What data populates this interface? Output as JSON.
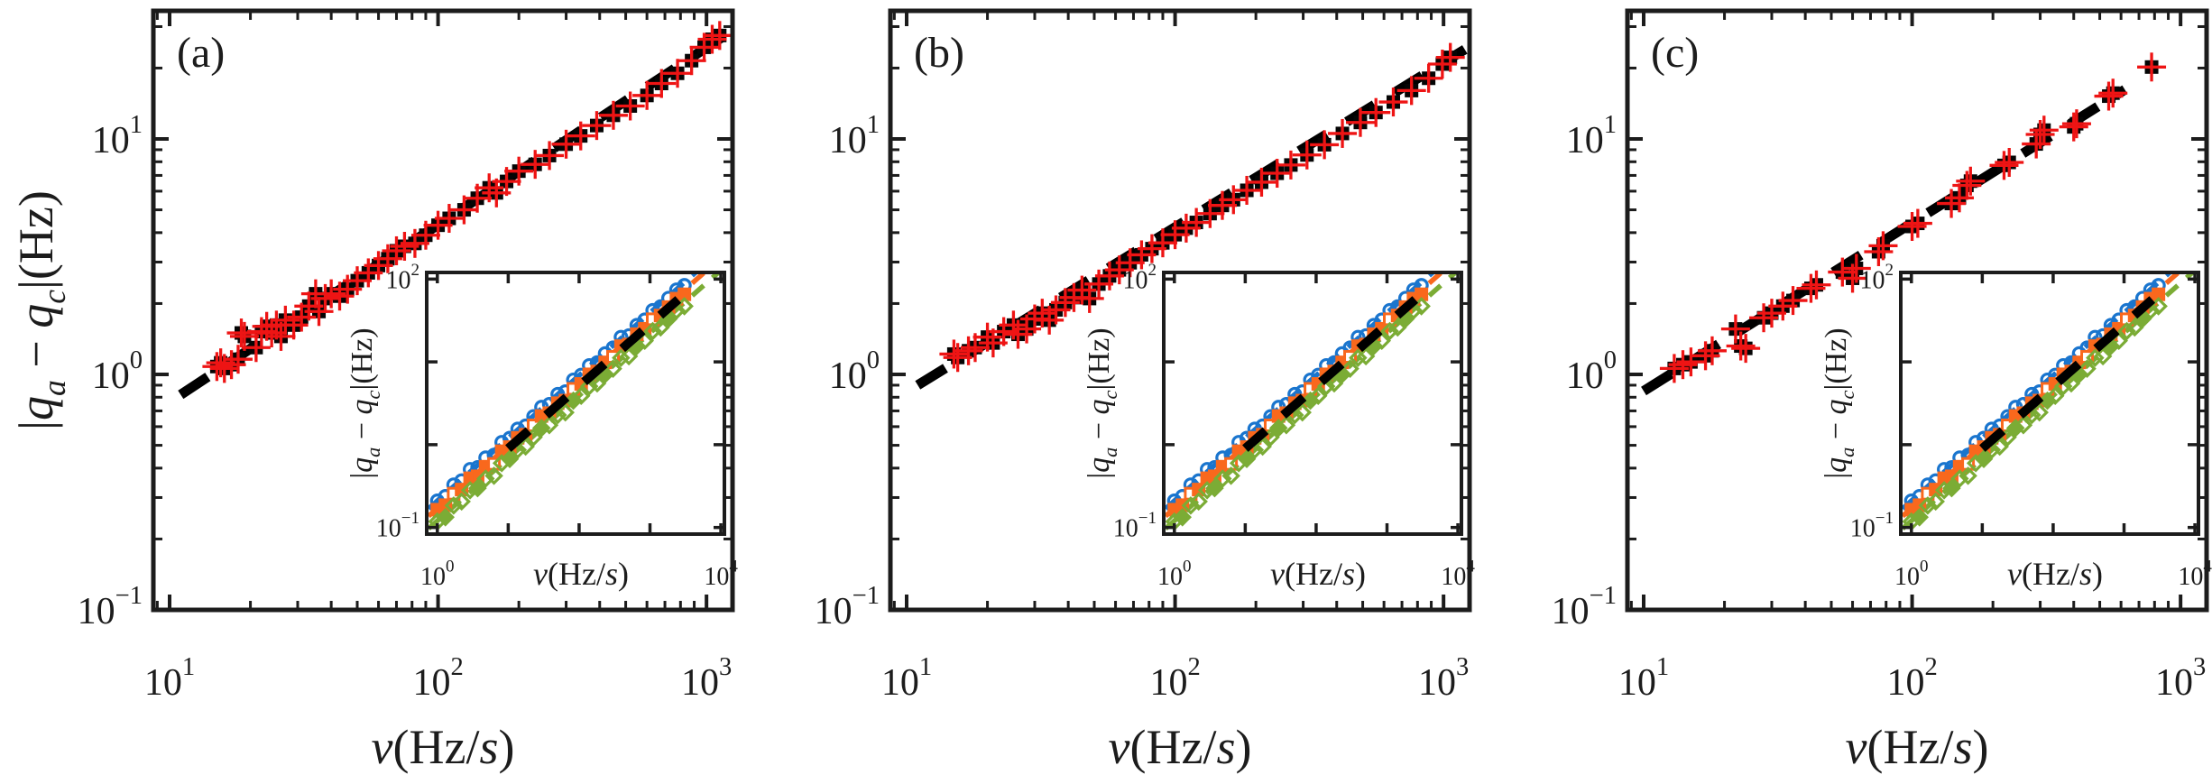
{
  "figure": {
    "title": "",
    "panel_labels": [
      "(a)",
      "(b)",
      "(c)"
    ],
    "x_axis_label": "v(Hz/s)",
    "y_axis_label": "|qa − qc|(Hz)"
  },
  "colors": {
    "background": "#ffffff",
    "axis": "#1c1c1c",
    "text": "#1c1c1c",
    "marker_square": "#050505",
    "errorbar_red": "#ee1414",
    "fit_black": "#000000",
    "inset_blue": "#1a75ce",
    "inset_orange": "#f9681d",
    "inset_green": "#7bac35"
  },
  "chart_data": {
    "type": "scatter",
    "scale": "log-log",
    "shared": {
      "xlabel": "v(Hz/s)",
      "ylabel": "|qa − qc|(Hz)",
      "xlabel_parts": [
        [
          "v",
          1
        ],
        [
          "(Hz/",
          0
        ],
        [
          "s",
          1
        ],
        [
          ")",
          0
        ]
      ],
      "ylabel_parts": [
        [
          "|",
          0
        ],
        [
          "q",
          1
        ],
        [
          "a",
          2
        ],
        [
          " − ",
          0
        ],
        [
          "q",
          1
        ],
        [
          "c",
          2
        ],
        [
          "|(Hz)",
          0
        ]
      ],
      "main": {
        "xlim": [
          8.7,
          1250
        ],
        "ylim": [
          0.1,
          35
        ],
        "xticks_labeled": [
          10,
          100,
          1000
        ],
        "yticks_labeled": [
          0.1,
          1,
          10
        ],
        "grid": false,
        "legend": "none"
      },
      "inset": {
        "xlim": [
          0.708,
          11220
        ],
        "ylim": [
          0.0832,
          120.2
        ],
        "xticks_labeled": [
          1,
          10000
        ],
        "yticks_labeled": [
          0.1,
          100
        ],
        "series_names": [
          "blue-circles",
          "orange-squares",
          "green-diamonds",
          "black-dashed-fit"
        ],
        "v": [
          1,
          1.3,
          1.7,
          2.2,
          2.9,
          3.7,
          4.8,
          6.3,
          8.1,
          10.5,
          13.6,
          17.6,
          22.8,
          29.5,
          38,
          50,
          64,
          83,
          107,
          139,
          180,
          233,
          301,
          390,
          504,
          652,
          844,
          1092,
          1412,
          1827,
          2364,
          3059
        ],
        "blue": [
          0.21,
          0.238,
          0.328,
          0.368,
          0.504,
          0.532,
          0.695,
          0.751,
          1.07,
          1.2,
          1.55,
          1.69,
          2.19,
          2.84,
          3.08,
          4.07,
          4.37,
          6.06,
          6.94,
          9.06,
          9.82,
          12.6,
          14.8,
          19.9,
          20.8,
          27.7,
          32.2,
          41.9,
          46.5,
          58.9,
          74.3,
          84
        ],
        "orange": [
          0.164,
          0.186,
          0.256,
          0.287,
          0.393,
          0.415,
          0.542,
          0.586,
          0.833,
          0.936,
          1.21,
          1.32,
          1.71,
          2.22,
          2.4,
          3.17,
          3.41,
          4.73,
          5.42,
          7.07,
          7.66,
          9.86,
          11.5,
          15.5,
          16.2,
          21.6,
          25.1,
          32.7,
          36.3,
          45.9,
          58,
          65.5
        ],
        "green": [
          0.118,
          0.133,
          0.184,
          0.206,
          0.282,
          0.298,
          0.389,
          0.421,
          0.598,
          0.672,
          0.866,
          0.948,
          1.23,
          1.59,
          1.72,
          2.28,
          2.45,
          3.4,
          3.89,
          5.07,
          5.5,
          7.08,
          8.27,
          11.2,
          11.7,
          15.5,
          18,
          23.5,
          26,
          33,
          41.6,
          47
        ],
        "lines": {
          "blue": [
            [
              0.75,
              0.169
            ],
            [
              11000,
              240
            ]
          ],
          "orange": [
            [
              0.75,
              0.137
            ],
            [
              11000,
              194
            ]
          ],
          "green": [
            [
              0.75,
              0.097
            ],
            [
              11000,
              137
            ]
          ],
          "black": [
            [
              10,
              0.9
            ],
            [
              2500,
              56.6
            ]
          ]
        }
      }
    },
    "panels": [
      {
        "label": "(a)",
        "show_y_label": true,
        "points": [
          [
            15,
            1.08
          ],
          [
            15.5,
            1.12
          ],
          [
            16,
            1.06
          ],
          [
            17,
            1.1
          ],
          [
            18,
            1.16
          ],
          [
            18.5,
            1.5
          ],
          [
            19,
            1.45
          ],
          [
            21,
            1.3
          ],
          [
            22,
            1.52
          ],
          [
            23,
            1.6
          ],
          [
            24,
            1.5
          ],
          [
            25,
            1.62
          ],
          [
            26,
            1.45
          ],
          [
            27,
            1.7
          ],
          [
            29,
            1.62
          ],
          [
            31,
            1.75
          ],
          [
            33,
            1.95
          ],
          [
            35,
            2.2
          ],
          [
            36,
            1.85
          ],
          [
            38,
            2.1
          ],
          [
            40,
            2.2
          ],
          [
            43,
            2.15
          ],
          [
            46,
            2.3
          ],
          [
            50,
            2.5
          ],
          [
            55,
            2.7
          ],
          [
            60,
            2.9
          ],
          [
            65,
            3.1
          ],
          [
            70,
            3.35
          ],
          [
            75,
            3.5
          ],
          [
            82,
            3.6
          ],
          [
            90,
            3.9
          ],
          [
            100,
            4.3
          ],
          [
            110,
            4.6
          ],
          [
            125,
            5.0
          ],
          [
            140,
            5.6
          ],
          [
            155,
            6.2
          ],
          [
            165,
            5.9
          ],
          [
            180,
            6.6
          ],
          [
            200,
            7.3
          ],
          [
            230,
            7.8
          ],
          [
            260,
            8.5
          ],
          [
            300,
            9.5
          ],
          [
            340,
            10.3
          ],
          [
            390,
            11.4
          ],
          [
            450,
            12.6
          ],
          [
            520,
            13.8
          ],
          [
            600,
            15.3
          ],
          [
            680,
            17.2
          ],
          [
            780,
            19.0
          ],
          [
            880,
            21.5
          ],
          [
            980,
            24.5
          ],
          [
            1050,
            26.5
          ],
          [
            1120,
            27.5
          ]
        ],
        "fit": [
          [
            11,
            0.82
          ],
          [
            1400,
            31.5
          ]
        ]
      },
      {
        "label": "(b)",
        "show_y_label": false,
        "points": [
          [
            15,
            1.22
          ],
          [
            15.5,
            1.18
          ],
          [
            17,
            1.26
          ],
          [
            18,
            1.3
          ],
          [
            20,
            1.44
          ],
          [
            21,
            1.36
          ],
          [
            23,
            1.52
          ],
          [
            25,
            1.62
          ],
          [
            26,
            1.48
          ],
          [
            28,
            1.56
          ],
          [
            30,
            1.72
          ],
          [
            32,
            1.82
          ],
          [
            34,
            1.7
          ],
          [
            36,
            1.88
          ],
          [
            39,
            2.02
          ],
          [
            42,
            2.12
          ],
          [
            45,
            2.28
          ],
          [
            48,
            2.1
          ],
          [
            52,
            2.42
          ],
          [
            57,
            2.62
          ],
          [
            62,
            2.78
          ],
          [
            68,
            2.98
          ],
          [
            75,
            3.22
          ],
          [
            82,
            3.42
          ],
          [
            90,
            3.62
          ],
          [
            100,
            3.92
          ],
          [
            110,
            4.18
          ],
          [
            120,
            4.42
          ],
          [
            135,
            4.82
          ],
          [
            150,
            5.22
          ],
          [
            165,
            5.52
          ],
          [
            185,
            6.05
          ],
          [
            210,
            6.55
          ],
          [
            240,
            7.15
          ],
          [
            270,
            7.75
          ],
          [
            310,
            8.55
          ],
          [
            360,
            9.45
          ],
          [
            420,
            10.55
          ],
          [
            490,
            11.75
          ],
          [
            560,
            12.95
          ],
          [
            650,
            14.35
          ],
          [
            760,
            16.05
          ],
          [
            880,
            18.1
          ],
          [
            990,
            20.8
          ],
          [
            1060,
            22.2
          ]
        ],
        "fit": [
          [
            11,
            0.9
          ],
          [
            1200,
            24
          ]
        ]
      },
      {
        "label": "(c)",
        "show_y_label": false,
        "points": [
          [
            13,
            1.06
          ],
          [
            14,
            1.1
          ],
          [
            15,
            1.13
          ],
          [
            17,
            1.2
          ],
          [
            18,
            1.26
          ],
          [
            22,
            1.56
          ],
          [
            23,
            1.32
          ],
          [
            24,
            1.29
          ],
          [
            28,
            1.74
          ],
          [
            30,
            1.82
          ],
          [
            33,
            1.95
          ],
          [
            36,
            2.06
          ],
          [
            42,
            2.32
          ],
          [
            44,
            2.4
          ],
          [
            55,
            2.72
          ],
          [
            60,
            2.56
          ],
          [
            62,
            2.82
          ],
          [
            75,
            3.32
          ],
          [
            78,
            3.52
          ],
          [
            100,
            4.25
          ],
          [
            105,
            4.38
          ],
          [
            140,
            5.32
          ],
          [
            150,
            5.62
          ],
          [
            160,
            6.35
          ],
          [
            165,
            6.62
          ],
          [
            220,
            7.72
          ],
          [
            230,
            7.95
          ],
          [
            290,
            9.52
          ],
          [
            300,
            10.45
          ],
          [
            310,
            10.9
          ],
          [
            400,
            11.25
          ],
          [
            410,
            11.6
          ],
          [
            540,
            15.2
          ],
          [
            560,
            15.65
          ],
          [
            780,
            20.2
          ]
        ],
        "fit": [
          [
            10,
            0.85
          ],
          [
            620,
            16.2
          ]
        ]
      }
    ]
  }
}
